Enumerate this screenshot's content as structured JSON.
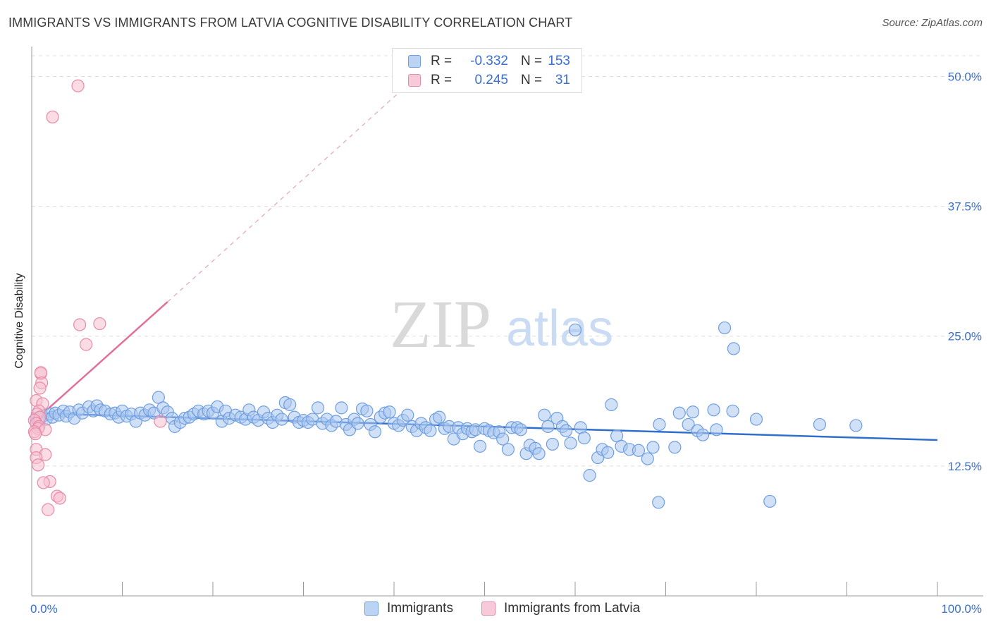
{
  "header": {
    "title": "IMMIGRANTS VS IMMIGRANTS FROM LATVIA COGNITIVE DISABILITY CORRELATION CHART",
    "source": "Source: ZipAtlas.com"
  },
  "watermark": {
    "zip": "ZIP",
    "atlas": "atlas"
  },
  "legend_top": {
    "rows": [
      {
        "r_label": "R =",
        "r_value": "-0.332",
        "n_label": "N =",
        "n_value": "153"
      },
      {
        "r_label": "R =",
        "r_value": "0.245",
        "n_label": "N =",
        "n_value": "31"
      }
    ]
  },
  "legend_bottom": {
    "items": [
      "Immigrants",
      "Immigrants from Latvia"
    ]
  },
  "colors": {
    "blue_fill": "#a9c6ef",
    "blue_stroke": "#6f9ee0",
    "blue_line": "#2f6fcc",
    "pink_fill": "#f6bfd0",
    "pink_stroke": "#e98aa8",
    "pink_line": "#e0709a",
    "grid": "#dddddd",
    "tick_label": "#3b6fd1"
  },
  "chart_data": {
    "type": "scatter",
    "title": "IMMIGRANTS VS IMMIGRANTS FROM LATVIA COGNITIVE DISABILITY CORRELATION CHART",
    "xlabel": "",
    "ylabel": "Cognitive Disability",
    "xlim": [
      0,
      100
    ],
    "ylim": [
      0,
      52
    ],
    "y_ticks": [
      12.5,
      25.0,
      37.5,
      50.0
    ],
    "y_tick_labels": [
      "12.5%",
      "25.0%",
      "37.5%",
      "50.0%"
    ],
    "x_tick_labels": [
      "0.0%",
      "100.0%"
    ],
    "grid": true,
    "legend_position": "bottom",
    "series": [
      {
        "name": "Immigrants",
        "r": -0.332,
        "n": 153,
        "trend": {
          "x0": 0,
          "y0": 17.6,
          "x1": 100,
          "y1": 15.0
        },
        "points": [
          [
            0.5,
            17.1
          ],
          [
            0.8,
            16.8
          ],
          [
            1.2,
            17.3
          ],
          [
            1.6,
            17.0
          ],
          [
            2.0,
            17.5
          ],
          [
            2.3,
            17.2
          ],
          [
            2.6,
            17.6
          ],
          [
            3.0,
            17.4
          ],
          [
            3.5,
            17.8
          ],
          [
            3.8,
            17.3
          ],
          [
            4.2,
            17.7
          ],
          [
            4.7,
            17.1
          ],
          [
            5.2,
            17.9
          ],
          [
            5.6,
            17.6
          ],
          [
            6.3,
            18.2
          ],
          [
            6.8,
            17.8
          ],
          [
            7.2,
            18.3
          ],
          [
            7.6,
            17.9
          ],
          [
            8.1,
            17.8
          ],
          [
            8.7,
            17.5
          ],
          [
            9.2,
            17.6
          ],
          [
            9.6,
            17.2
          ],
          [
            10.0,
            17.8
          ],
          [
            10.5,
            17.3
          ],
          [
            11.0,
            17.5
          ],
          [
            11.5,
            16.8
          ],
          [
            12.0,
            17.6
          ],
          [
            12.5,
            17.4
          ],
          [
            13.0,
            17.9
          ],
          [
            13.5,
            17.6
          ],
          [
            14.0,
            19.1
          ],
          [
            14.5,
            18.1
          ],
          [
            15.0,
            17.7
          ],
          [
            15.5,
            17.1
          ],
          [
            15.8,
            16.3
          ],
          [
            16.4,
            16.7
          ],
          [
            16.9,
            17.1
          ],
          [
            17.4,
            17.2
          ],
          [
            17.9,
            17.5
          ],
          [
            18.4,
            17.8
          ],
          [
            19.0,
            17.5
          ],
          [
            19.5,
            17.8
          ],
          [
            20.0,
            17.6
          ],
          [
            20.5,
            18.2
          ],
          [
            21.0,
            16.8
          ],
          [
            21.4,
            17.8
          ],
          [
            21.8,
            17.1
          ],
          [
            22.5,
            17.4
          ],
          [
            23.1,
            17.2
          ],
          [
            23.6,
            17.0
          ],
          [
            24.0,
            17.9
          ],
          [
            24.5,
            17.2
          ],
          [
            25.0,
            16.9
          ],
          [
            25.6,
            17.7
          ],
          [
            26.1,
            17.1
          ],
          [
            26.6,
            16.7
          ],
          [
            27.1,
            17.4
          ],
          [
            27.6,
            17.0
          ],
          [
            28.0,
            18.6
          ],
          [
            28.5,
            18.4
          ],
          [
            29.0,
            17.2
          ],
          [
            29.5,
            16.7
          ],
          [
            30.0,
            16.9
          ],
          [
            30.5,
            16.7
          ],
          [
            31.0,
            17.0
          ],
          [
            31.6,
            18.1
          ],
          [
            32.1,
            16.6
          ],
          [
            32.6,
            17.0
          ],
          [
            33.1,
            16.4
          ],
          [
            33.6,
            16.8
          ],
          [
            34.2,
            18.1
          ],
          [
            34.7,
            16.5
          ],
          [
            35.1,
            16.0
          ],
          [
            35.6,
            17.0
          ],
          [
            36.0,
            16.6
          ],
          [
            36.5,
            18.0
          ],
          [
            37.0,
            17.8
          ],
          [
            37.4,
            16.5
          ],
          [
            37.9,
            15.8
          ],
          [
            38.5,
            17.2
          ],
          [
            39.0,
            17.6
          ],
          [
            39.5,
            17.7
          ],
          [
            40.0,
            16.6
          ],
          [
            40.5,
            16.4
          ],
          [
            41.0,
            16.9
          ],
          [
            41.5,
            17.4
          ],
          [
            42.0,
            16.3
          ],
          [
            42.5,
            15.9
          ],
          [
            43.0,
            16.6
          ],
          [
            43.5,
            16.2
          ],
          [
            44.0,
            15.9
          ],
          [
            44.6,
            17.0
          ],
          [
            45.0,
            17.2
          ],
          [
            45.6,
            16.1
          ],
          [
            46.1,
            16.3
          ],
          [
            46.6,
            15.1
          ],
          [
            47.1,
            16.2
          ],
          [
            47.6,
            15.6
          ],
          [
            48.1,
            16.1
          ],
          [
            48.6,
            15.8
          ],
          [
            49.0,
            16.0
          ],
          [
            49.5,
            14.4
          ],
          [
            50.0,
            16.1
          ],
          [
            50.5,
            15.9
          ],
          [
            51.0,
            15.7
          ],
          [
            51.6,
            15.8
          ],
          [
            52.0,
            15.1
          ],
          [
            52.6,
            14.1
          ],
          [
            53.0,
            16.2
          ],
          [
            53.6,
            16.2
          ],
          [
            54.0,
            16.0
          ],
          [
            54.6,
            13.7
          ],
          [
            55.0,
            14.5
          ],
          [
            55.6,
            14.2
          ],
          [
            56.0,
            13.7
          ],
          [
            56.6,
            17.4
          ],
          [
            57.0,
            16.3
          ],
          [
            57.5,
            14.6
          ],
          [
            58.0,
            17.1
          ],
          [
            58.6,
            16.3
          ],
          [
            59.0,
            15.9
          ],
          [
            59.5,
            14.7
          ],
          [
            60.0,
            25.6
          ],
          [
            60.6,
            16.2
          ],
          [
            61.0,
            15.2
          ],
          [
            61.6,
            11.6
          ],
          [
            62.5,
            13.3
          ],
          [
            63.0,
            14.1
          ],
          [
            63.6,
            13.8
          ],
          [
            64.0,
            18.4
          ],
          [
            64.6,
            15.4
          ],
          [
            65.1,
            14.4
          ],
          [
            66.0,
            14.1
          ],
          [
            67.0,
            14.0
          ],
          [
            68.0,
            13.2
          ],
          [
            68.6,
            14.3
          ],
          [
            69.3,
            16.5
          ],
          [
            69.2,
            9.0
          ],
          [
            71.0,
            14.3
          ],
          [
            71.5,
            17.6
          ],
          [
            72.5,
            16.5
          ],
          [
            73.0,
            17.7
          ],
          [
            73.5,
            15.9
          ],
          [
            74.1,
            15.5
          ],
          [
            75.3,
            17.9
          ],
          [
            75.6,
            16.0
          ],
          [
            76.5,
            25.8
          ],
          [
            77.5,
            23.8
          ],
          [
            77.4,
            17.8
          ],
          [
            80.0,
            17.0
          ],
          [
            81.5,
            9.1
          ],
          [
            87.0,
            16.5
          ],
          [
            91.0,
            16.4
          ]
        ]
      },
      {
        "name": "Immigrants from Latvia",
        "r": 0.245,
        "n": 31,
        "trend": {
          "x0": 0,
          "y0": 16.6,
          "x1": 15.0,
          "y1": 28.3,
          "dash_to_x": 42.5,
          "dash_to_y": 50.0
        },
        "points": [
          [
            5.1,
            49.1
          ],
          [
            2.3,
            46.1
          ],
          [
            5.3,
            26.1
          ],
          [
            7.5,
            26.2
          ],
          [
            6.0,
            24.2
          ],
          [
            1.0,
            21.4
          ],
          [
            1.0,
            21.5
          ],
          [
            1.1,
            20.5
          ],
          [
            0.9,
            20.0
          ],
          [
            0.5,
            18.8
          ],
          [
            1.2,
            18.5
          ],
          [
            0.8,
            17.8
          ],
          [
            0.6,
            17.5
          ],
          [
            0.9,
            17.2
          ],
          [
            0.3,
            16.9
          ],
          [
            0.5,
            16.6
          ],
          [
            0.8,
            16.3
          ],
          [
            0.7,
            16.1
          ],
          [
            1.5,
            16.0
          ],
          [
            0.3,
            15.8
          ],
          [
            0.4,
            15.6
          ],
          [
            0.5,
            14.1
          ],
          [
            1.5,
            13.6
          ],
          [
            0.5,
            13.3
          ],
          [
            0.7,
            12.6
          ],
          [
            2.0,
            11.0
          ],
          [
            1.3,
            10.9
          ],
          [
            2.8,
            9.6
          ],
          [
            3.1,
            9.4
          ],
          [
            1.8,
            8.3
          ],
          [
            14.2,
            16.8
          ]
        ]
      }
    ]
  }
}
